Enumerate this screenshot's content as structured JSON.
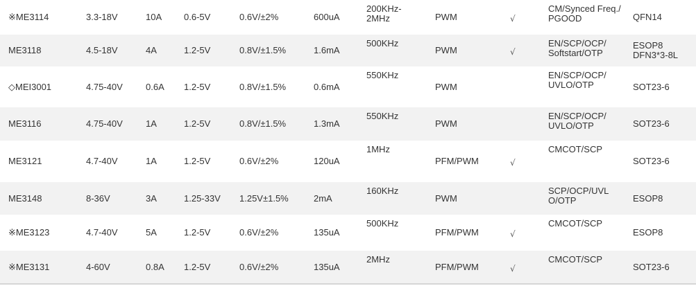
{
  "rows": [
    {
      "model": "※ME3114",
      "vin": "3.3-18V",
      "iout": "10A",
      "vout": "0.6-5V",
      "vref": "0.6V/±2%",
      "iq": "600uA",
      "freq": "200KHz-\n2MHz",
      "mode": "PWM",
      "sync": "√",
      "protection": "CM/Synced Freq./\nPGOOD",
      "package": "QFN14"
    },
    {
      "model": "ME3118",
      "vin": "4.5-18V",
      "iout": "4A",
      "vout": "1.2-5V",
      "vref": "0.8V/±1.5%",
      "iq": "1.6mA",
      "freq": "500KHz",
      "mode": "PWM",
      "sync": "√",
      "protection": "EN/SCP/OCP/\nSoftstart/OTP",
      "package": "ESOP8\nDFN3*3-8L"
    },
    {
      "model": "◇MEI3001",
      "vin": "4.75-40V",
      "iout": "0.6A",
      "vout": "1.2-5V",
      "vref": "0.8V/±1.5%",
      "iq": "0.6mA",
      "freq": "550KHz",
      "mode": "PWM",
      "sync": "",
      "protection": "EN/SCP/OCP/\nUVLO/OTP",
      "package": "SOT23-6"
    },
    {
      "model": "ME3116",
      "vin": "4.75-40V",
      "iout": "1A",
      "vout": "1.2-5V",
      "vref": "0.8V/±1.5%",
      "iq": "1.3mA",
      "freq": "550KHz",
      "mode": "PWM",
      "sync": "",
      "protection": "EN/SCP/OCP/\nUVLO/OTP",
      "package": "SOT23-6"
    },
    {
      "model": "ME3121",
      "vin": "4.7-40V",
      "iout": "1A",
      "vout": "1.2-5V",
      "vref": "0.6V/±2%",
      "iq": "120uA",
      "freq": "1MHz",
      "mode": "PFM/PWM",
      "sync": "√",
      "protection": "CMCOT/SCP",
      "package": "SOT23-6"
    },
    {
      "model": "ME3148",
      "vin": "8-36V",
      "iout": "3A",
      "vout": "1.25-33V",
      "vref": "1.25V±1.5%",
      "iq": "2mA",
      "freq": "160KHz",
      "mode": "PWM",
      "sync": "",
      "protection": "SCP/OCP/UVL\nO/OTP",
      "package": "ESOP8"
    },
    {
      "model": "※ME3123",
      "vin": "4.7-40V",
      "iout": "5A",
      "vout": "1.2-5V",
      "vref": "0.6V/±2%",
      "iq": "135uA",
      "freq": "500KHz",
      "mode": "PFM/PWM",
      "sync": "√",
      "protection": "CMCOT/SCP",
      "package": "ESOP8"
    },
    {
      "model": "※ME3131",
      "vin": "4-60V",
      "iout": "0.8A",
      "vout": "1.2-5V",
      "vref": "0.6V/±2%",
      "iq": "135uA",
      "freq": "2MHz",
      "mode": "PFM/PWM",
      "sync": "√",
      "protection": "CMCOT/SCP",
      "package": "SOT23-6"
    }
  ]
}
